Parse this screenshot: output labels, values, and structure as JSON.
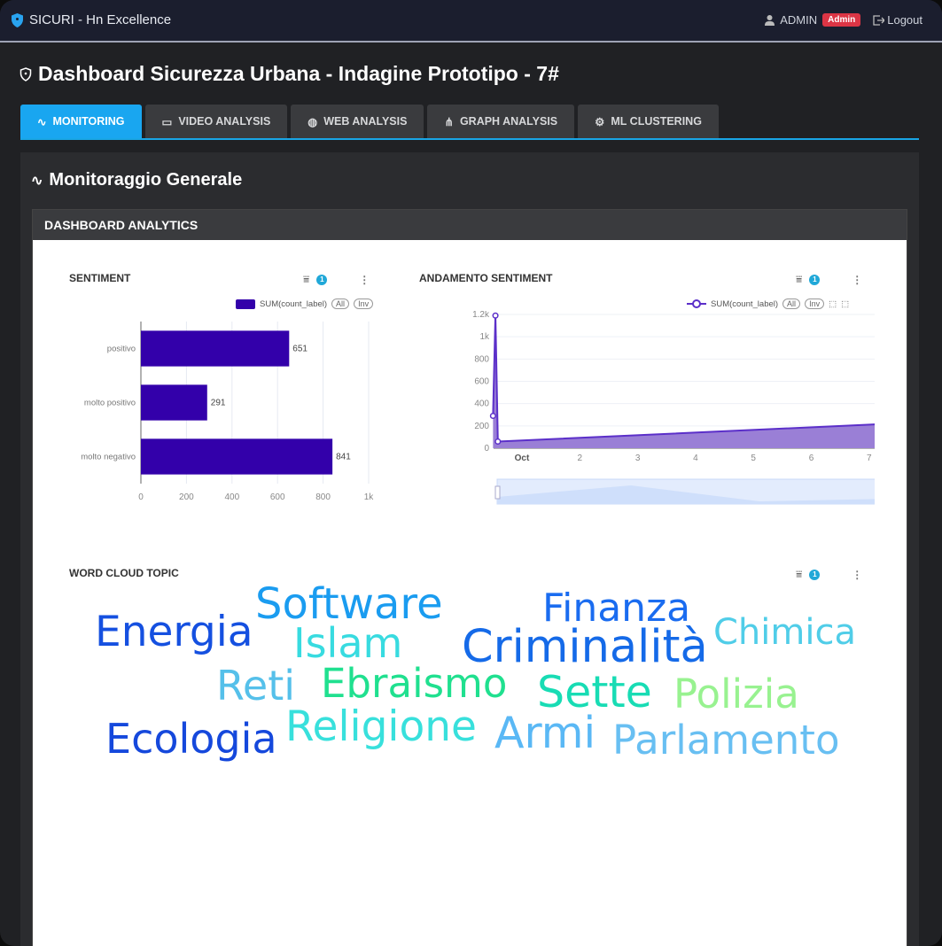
{
  "topbar": {
    "app_title": "SICURI - Hn Excellence",
    "user": "ADMIN",
    "role_badge": "Admin",
    "logout": "Logout"
  },
  "page_title": "Dashboard Sicurezza Urbana - Indagine Prototipo - 7#",
  "tabs": [
    {
      "label": "MONITORING",
      "icon": "pulse-icon",
      "active": true
    },
    {
      "label": "VIDEO ANALYSIS",
      "icon": "video-icon"
    },
    {
      "label": "WEB ANALYSIS",
      "icon": "globe-icon"
    },
    {
      "label": "GRAPH ANALYSIS",
      "icon": "sitemap-icon"
    },
    {
      "label": "ML CLUSTERING",
      "icon": "chip-icon"
    }
  ],
  "section_title": "Monitoraggio Generale",
  "card_header": "DASHBOARD ANALYTICS",
  "colors": {
    "accent": "#19a6f0",
    "bar": "#3300aa",
    "line": "#5b2fc9",
    "area": "#9a7fd6",
    "badge": "#dc3545"
  },
  "filter_count": "1",
  "legend_all": "All",
  "legend_inv": "Inv",
  "chart_data": [
    {
      "type": "bar",
      "orientation": "horizontal",
      "title": "SENTIMENT",
      "series": [
        {
          "name": "SUM(count_label)",
          "values": [
            651,
            291,
            841
          ]
        }
      ],
      "categories": [
        "positivo",
        "molto positivo",
        "molto negativo"
      ],
      "xlim": [
        0,
        1000
      ],
      "xticks": [
        "0",
        "200",
        "400",
        "600",
        "800",
        "1k"
      ],
      "data_labels": true
    },
    {
      "type": "area",
      "title": "ANDAMENTO SENTIMENT",
      "series": [
        {
          "name": "SUM(count_label)",
          "points": [
            [
              "Sep 30 12:00",
              290
            ],
            [
              "Sep 30 13:00",
              1190
            ],
            [
              "Sep 30 14:00",
              60
            ],
            [
              "Oct 7 09:00",
              220
            ]
          ]
        }
      ],
      "ylim": [
        0,
        1200
      ],
      "yticks": [
        "0",
        "200",
        "400",
        "600",
        "800",
        "1k",
        "1.2k"
      ],
      "xticks": [
        "Oct",
        "2",
        "3",
        "4",
        "5",
        "6",
        "7"
      ],
      "grid": true,
      "datazoom": true
    }
  ],
  "wordcloud": {
    "title": "WORD CLOUD TOPIC",
    "words": [
      {
        "text": "Energia",
        "color": "#1550e0"
      },
      {
        "text": "Software",
        "color": "#1a9cf0"
      },
      {
        "text": "Finanza",
        "color": "#1a6cf0"
      },
      {
        "text": "Chimica",
        "color": "#50cde8"
      },
      {
        "text": "Islam",
        "color": "#38dbe0"
      },
      {
        "text": "Criminalità",
        "color": "#156ae8"
      },
      {
        "text": "Reti",
        "color": "#55c0ea"
      },
      {
        "text": "Ebraismo",
        "color": "#20e08f"
      },
      {
        "text": "Sette",
        "color": "#18dcb4"
      },
      {
        "text": "Polizia",
        "color": "#98f290"
      },
      {
        "text": "Ecologia",
        "color": "#1548dc"
      },
      {
        "text": "Religione",
        "color": "#38e0dc"
      },
      {
        "text": "Armi",
        "color": "#5ab8f5"
      },
      {
        "text": "Parlamento",
        "color": "#68bff2"
      }
    ]
  }
}
